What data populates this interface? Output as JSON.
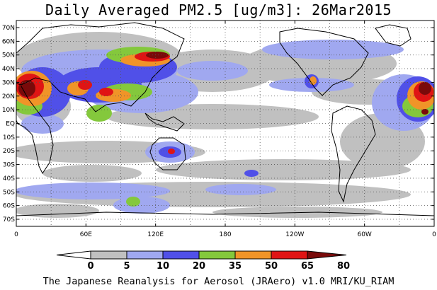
{
  "title": "Daily Averaged PM2.5 [ug/m3]: 26Mar2015",
  "footer": "The Japanese Reanalysis for Aerosol (JRAero) v1.0 MRI/KU_RIAM",
  "lat_labels": [
    "70N",
    "60N",
    "50N",
    "40N",
    "30N",
    "20N",
    "10N",
    "EQ",
    "10S",
    "20S",
    "30S",
    "40S",
    "50S",
    "60S",
    "70S"
  ],
  "lon_labels": [
    "0",
    "60E",
    "120E",
    "180",
    "120W",
    "60W",
    "0"
  ],
  "colorbar": {
    "levels": [
      "0",
      "5",
      "10",
      "20",
      "35",
      "50",
      "65",
      "80"
    ],
    "colors": [
      "#ffffff",
      "#c0c0c0",
      "#a0a8f0",
      "#5050e8",
      "#84c83c",
      "#f09428",
      "#e01414",
      "#7a0a0a"
    ]
  },
  "chart_data": {
    "type": "heatmap",
    "title": "Daily Averaged PM2.5 [ug/m3]: 26Mar2015",
    "x_range": [
      0,
      360
    ],
    "y_range": [
      -75,
      75
    ],
    "grid": true,
    "units": "ug/m3",
    "bins": [
      0,
      5,
      10,
      20,
      35,
      50,
      65,
      80
    ]
  }
}
